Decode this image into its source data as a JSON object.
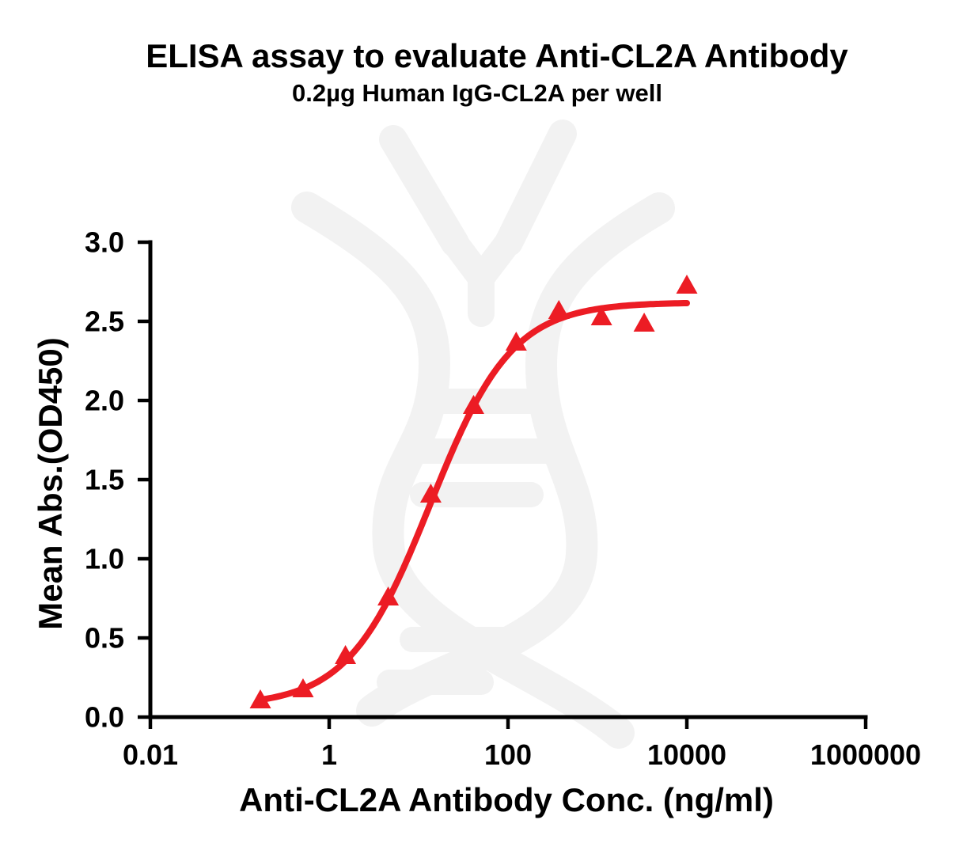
{
  "chart": {
    "title": "ELISA assay to evaluate Anti-CL2A Antibody",
    "subtitle": "0.2µg Human IgG-CL2A per well",
    "x_axis_label": "Anti-CL2A Antibody Conc. (ng/ml)",
    "y_axis_label": "Mean Abs.(OD450)"
  },
  "chart_data": {
    "type": "scatter",
    "title": "ELISA assay to evaluate Anti-CL2A Antibody",
    "subtitle": "0.2µg Human IgG-CL2A per well",
    "xlabel": "Anti-CL2A Antibody Conc. (ng/ml)",
    "ylabel": "Mean Abs.(OD450)",
    "x_scale": "log10",
    "xlim": [
      0.01,
      1000000
    ],
    "ylim": [
      0.0,
      3.0
    ],
    "x_ticks": [
      0.01,
      1,
      100,
      10000,
      1000000
    ],
    "x_tick_labels": [
      "0.01",
      "1",
      "100",
      "10000",
      "1000000"
    ],
    "y_ticks": [
      0.0,
      0.5,
      1.0,
      1.5,
      2.0,
      2.5,
      3.0
    ],
    "y_tick_labels": [
      "0.0",
      "0.5",
      "1.0",
      "1.5",
      "2.0",
      "2.5",
      "3.0"
    ],
    "grid": false,
    "legend": "none",
    "axis_color": "#000000",
    "watermark_color": "#F2F2F2",
    "series": [
      {
        "name": "Anti-CL2A Antibody",
        "marker": "triangle-up",
        "color": "#EC1C24",
        "x": [
          0.17,
          0.51,
          1.52,
          4.57,
          13.7,
          41.2,
          123.5,
          370.4,
          1111,
          3333,
          10000
        ],
        "y": [
          0.11,
          0.18,
          0.39,
          0.76,
          1.41,
          1.97,
          2.37,
          2.57,
          2.53,
          2.49,
          2.73
        ],
        "fit": {
          "model": "4PL",
          "bottom": 0.07,
          "top": 2.62,
          "ec50": 13.5,
          "hill": 0.95,
          "x_range": [
            0.17,
            10000
          ]
        }
      }
    ]
  }
}
